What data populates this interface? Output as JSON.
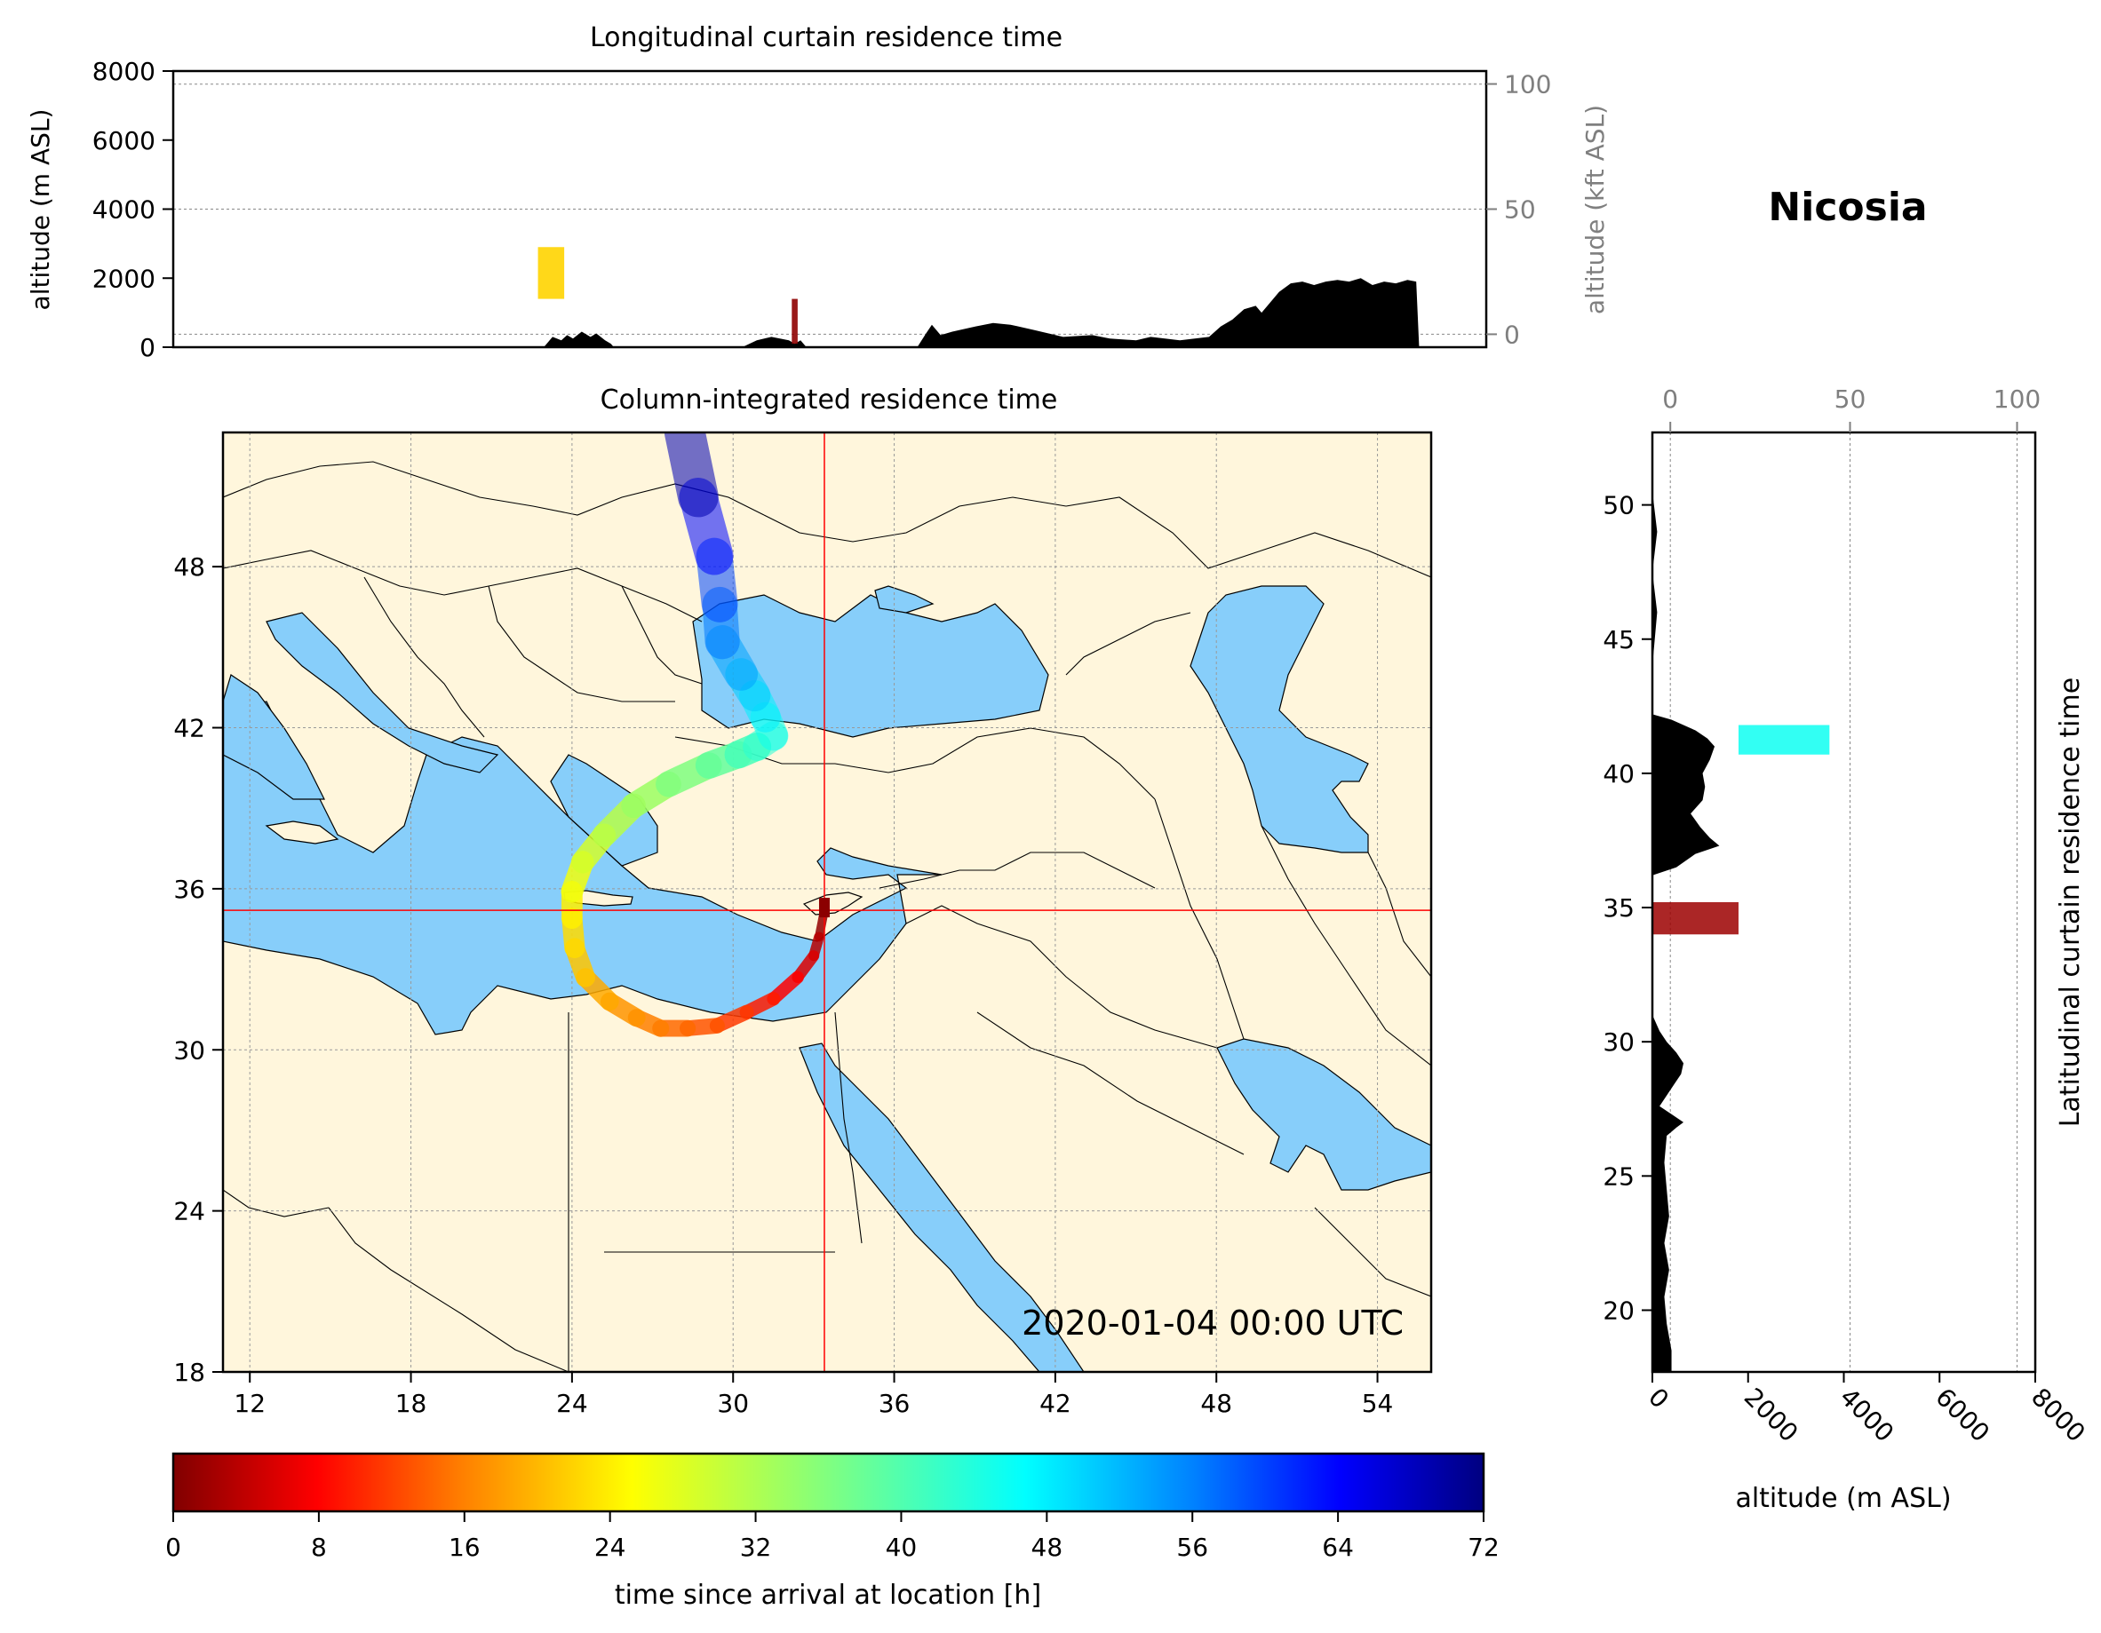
{
  "figure": {
    "station": "Nicosia",
    "timestamp": "2020-01-04 00:00 UTC"
  },
  "colors": {
    "land": "#fff6dc",
    "sea": "#87cefa",
    "crosshair": "#ff0000",
    "terrain": "#000000",
    "secondary_axis": "#7f7f7f"
  },
  "chart_data": [
    {
      "id": "longitudinal",
      "type": "area",
      "title": "Longitudinal curtain residence time",
      "ylabel": "altitude (m ASL)",
      "ylabel_right": "altitude (kft ASL)",
      "ylim": [
        0,
        8000
      ],
      "yticks": [
        "0",
        "2000",
        "4000",
        "6000",
        "8000"
      ],
      "yticks_right": [
        "0",
        "50",
        "100"
      ],
      "xlim": [
        10.5,
        55.5
      ],
      "grid": true,
      "terrain_profile": {
        "x": [
          21.0,
          23.2,
          23.5,
          23.8,
          24.0,
          24.2,
          24.5,
          24.8,
          25.0,
          25.3,
          25.5,
          25.6,
          28.0,
          30.0,
          30.5,
          31.0,
          31.6,
          31.8,
          32.0,
          32.1,
          32.2,
          33.5,
          33.6,
          36.0,
          36.3,
          36.5,
          36.8,
          37.2,
          38.0,
          38.6,
          39.2,
          40.0,
          41.0,
          42.0,
          42.6,
          43.5,
          44.0,
          45.0,
          46.0,
          46.4,
          46.8,
          47.2,
          47.6,
          47.8,
          48.0,
          48.4,
          48.8,
          49.2,
          49.6,
          50.0,
          50.4,
          50.8,
          51.2,
          51.6,
          52.0,
          52.4,
          52.8,
          53.1,
          53.2
        ],
        "y": [
          0,
          0,
          300,
          200,
          350,
          250,
          450,
          300,
          400,
          200,
          100,
          0,
          0,
          0,
          200,
          300,
          200,
          100,
          200,
          100,
          0,
          0,
          0,
          0,
          400,
          650,
          350,
          450,
          600,
          700,
          650,
          500,
          300,
          350,
          250,
          200,
          300,
          200,
          300,
          600,
          800,
          1100,
          1200,
          1000,
          1200,
          1600,
          1850,
          1900,
          1800,
          1900,
          1950,
          1900,
          2000,
          1800,
          1900,
          1850,
          1950,
          1900,
          0
        ]
      },
      "residence_patches": [
        {
          "lon": [
            23.0,
            23.9
          ],
          "alt": [
            1400,
            2900
          ],
          "hours": 24
        },
        {
          "lon": [
            31.7,
            31.9
          ],
          "alt": [
            100,
            1400
          ],
          "hours": 1
        }
      ]
    },
    {
      "id": "column",
      "type": "heatmap",
      "title": "Column-integrated residence time",
      "xlim": [
        11,
        56
      ],
      "ylim": [
        18,
        53
      ],
      "xticks": [
        "12",
        "18",
        "24",
        "30",
        "36",
        "42",
        "48",
        "54"
      ],
      "yticks": [
        "18",
        "24",
        "30",
        "36",
        "42",
        "48"
      ],
      "grid": true,
      "station": {
        "lon": 33.4,
        "lat": 35.2
      },
      "trajectory": {
        "lon": [
          33.4,
          33.2,
          33.0,
          32.4,
          31.5,
          30.5,
          29.4,
          28.3,
          27.3,
          26.4,
          25.4,
          24.5,
          24.1,
          24.0,
          24.0,
          24.4,
          25.2,
          26.3,
          27.6,
          29.1,
          30.2,
          30.9,
          31.5,
          31.2,
          30.8,
          30.3,
          29.6,
          29.5,
          29.3,
          28.7,
          28.2
        ],
        "lat": [
          35.2,
          34.2,
          33.5,
          32.7,
          31.9,
          31.4,
          30.9,
          30.8,
          30.8,
          31.2,
          31.8,
          32.7,
          33.8,
          34.9,
          35.9,
          37.0,
          38.0,
          39.1,
          39.9,
          40.6,
          41.0,
          41.3,
          41.7,
          42.4,
          43.2,
          44.0,
          45.2,
          46.6,
          48.4,
          50.6,
          53.0
        ],
        "hours": [
          0,
          3,
          5,
          8,
          10,
          12,
          14,
          16,
          17,
          19,
          20,
          22,
          24,
          25,
          27,
          29,
          31,
          33,
          35,
          37,
          39,
          41,
          43,
          45,
          47,
          50,
          53,
          56,
          60,
          65,
          72
        ]
      }
    },
    {
      "id": "latitudinal",
      "type": "area",
      "title": "Latitudinal curtain residence time",
      "xlabel": "altitude (m ASL)",
      "xlim": [
        0,
        8000
      ],
      "xticks": [
        "0",
        "2000",
        "4000",
        "6000",
        "8000"
      ],
      "xticks_top": [
        "0",
        "50",
        "100"
      ],
      "ylim": [
        17.7,
        52.7
      ],
      "yticks": [
        "20",
        "25",
        "30",
        "35",
        "40",
        "45",
        "50"
      ],
      "grid": true,
      "terrain_profile": {
        "lat": [
          17.7,
          18.5,
          19.5,
          20.5,
          21.5,
          22.5,
          23.5,
          24.5,
          25.5,
          26.5,
          26.8,
          27.0,
          27.3,
          27.6,
          28.0,
          28.4,
          28.8,
          29.2,
          29.6,
          30.0,
          30.4,
          30.8,
          31.0,
          36.2,
          36.5,
          37.0,
          37.3,
          37.6,
          38.0,
          38.5,
          39.0,
          39.5,
          40.0,
          40.5,
          41.0,
          41.3,
          41.6,
          42.0,
          42.2,
          44.0,
          46.0,
          47.5,
          49.0,
          50.5,
          52.7
        ],
        "alt": [
          400,
          400,
          300,
          250,
          350,
          250,
          350,
          300,
          250,
          300,
          500,
          650,
          400,
          150,
          300,
          450,
          600,
          650,
          500,
          300,
          150,
          50,
          0,
          0,
          500,
          900,
          1400,
          1200,
          1000,
          800,
          1050,
          1100,
          1050,
          1200,
          1300,
          1150,
          900,
          400,
          0,
          0,
          100,
          0,
          100,
          0,
          0
        ]
      },
      "residence_patches": [
        {
          "lat": [
            34.0,
            35.2
          ],
          "alt": [
            0,
            1800
          ],
          "hours": 2
        },
        {
          "lat": [
            40.7,
            41.8
          ],
          "alt": [
            1800,
            3700
          ],
          "hours": 44
        }
      ]
    }
  ],
  "colorbar": {
    "label": "time since arrival at location [h]",
    "range": [
      0,
      72
    ],
    "ticks": [
      "0",
      "8",
      "16",
      "24",
      "32",
      "40",
      "48",
      "56",
      "64",
      "72"
    ],
    "colormap": "jet_r"
  }
}
